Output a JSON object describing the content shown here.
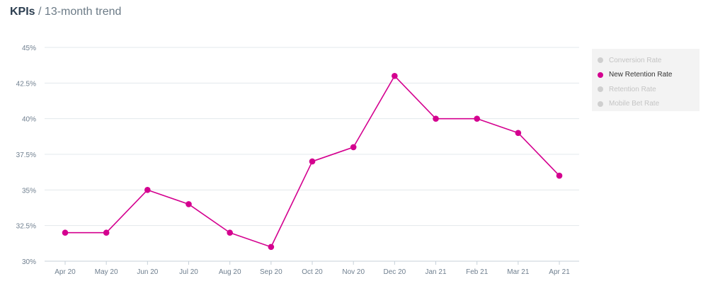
{
  "header": {
    "title": "KPIs",
    "separator": " / ",
    "subtitle": "13-month trend"
  },
  "legend": {
    "items": [
      {
        "label": "Conversion Rate",
        "active": false
      },
      {
        "label": "New Retention Rate",
        "active": true
      },
      {
        "label": "Retention Rate",
        "active": false
      },
      {
        "label": "Mobile Bet Rate",
        "active": false
      }
    ]
  },
  "chart_data": {
    "type": "line",
    "title": "13-month trend",
    "categories": [
      "Apr 20",
      "May 20",
      "Jun 20",
      "Jul 20",
      "Aug 20",
      "Sep 20",
      "Oct 20",
      "Nov 20",
      "Dec 20",
      "Jan 21",
      "Feb 21",
      "Mar 21",
      "Apr 21"
    ],
    "series": [
      {
        "name": "New Retention Rate",
        "color": "#d4008f",
        "values": [
          32,
          32,
          35,
          34,
          32,
          31,
          37,
          38,
          43,
          40,
          40,
          39,
          36
        ]
      }
    ],
    "ylim": [
      30,
      45
    ],
    "yticks": [
      30,
      32.5,
      35,
      37.5,
      40,
      42.5,
      45
    ],
    "ytick_labels": [
      "30%",
      "32.5%",
      "35%",
      "37.5%",
      "40%",
      "42.5%",
      "45%"
    ],
    "grid": true,
    "legend_position": "right"
  }
}
